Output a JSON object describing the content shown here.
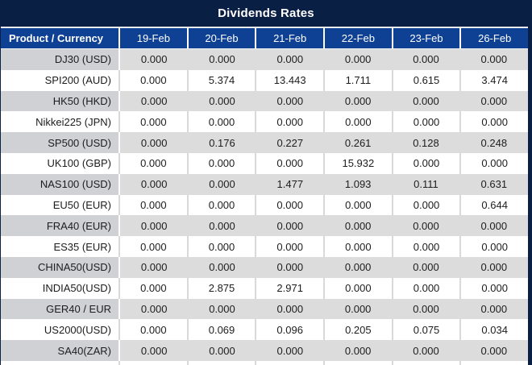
{
  "title": "Dividends Rates",
  "colors": {
    "title_bar_navy": "#0a1f44",
    "header_blue": "#0e4194",
    "highlight_red": "#ff0000",
    "row_gray": "#dcdcdc",
    "product_gray": "#cfd1d5",
    "text_black": "#1d1d1f"
  },
  "table": {
    "product_header": "Product / Currency",
    "date_headers": [
      "19-Feb",
      "20-Feb",
      "21-Feb",
      "22-Feb",
      "23-Feb",
      "26-Feb"
    ],
    "rows": [
      {
        "product": "DJ30 (USD)",
        "values": [
          "0.000",
          "0.000",
          "0.000",
          "0.000",
          "0.000",
          "0.000"
        ]
      },
      {
        "product": "SPI200 (AUD)",
        "values": [
          "0.000",
          "5.374",
          "13.443",
          "1.711",
          "0.615",
          "3.474"
        ]
      },
      {
        "product": "HK50 (HKD)",
        "values": [
          "0.000",
          "0.000",
          "0.000",
          "0.000",
          "0.000",
          "0.000"
        ]
      },
      {
        "product": "Nikkei225 (JPN)",
        "values": [
          "0.000",
          "0.000",
          "0.000",
          "0.000",
          "0.000",
          "0.000"
        ]
      },
      {
        "product": "SP500 (USD)",
        "values": [
          "0.000",
          "0.176",
          "0.227",
          "0.261",
          "0.128",
          "0.248"
        ]
      },
      {
        "product": "UK100 (GBP)",
        "values": [
          "0.000",
          "0.000",
          "0.000",
          "15.932",
          "0.000",
          "0.000"
        ]
      },
      {
        "product": "NAS100 (USD)",
        "values": [
          "0.000",
          "0.000",
          "1.477",
          "1.093",
          "0.111",
          "0.631"
        ]
      },
      {
        "product": "EU50 (EUR)",
        "values": [
          "0.000",
          "0.000",
          "0.000",
          "0.000",
          "0.000",
          "0.644"
        ]
      },
      {
        "product": "FRA40 (EUR)",
        "values": [
          "0.000",
          "0.000",
          "0.000",
          "0.000",
          "0.000",
          "0.000"
        ]
      },
      {
        "product": "ES35 (EUR)",
        "values": [
          "0.000",
          "0.000",
          "0.000",
          "0.000",
          "0.000",
          "0.000"
        ]
      },
      {
        "product": "CHINA50(USD)",
        "values": [
          "0.000",
          "0.000",
          "0.000",
          "0.000",
          "0.000",
          "0.000"
        ]
      },
      {
        "product": "INDIA50(USD)",
        "values": [
          "0.000",
          "2.875",
          "2.971",
          "0.000",
          "0.000",
          "0.000"
        ]
      },
      {
        "product": "GER40 / EUR",
        "values": [
          "0.000",
          "0.000",
          "0.000",
          "0.000",
          "0.000",
          "0.000"
        ]
      },
      {
        "product": "US2000(USD)",
        "values": [
          "0.000",
          "0.069",
          "0.096",
          "0.205",
          "0.075",
          "0.034"
        ]
      },
      {
        "product": "SA40(ZAR)",
        "values": [
          "0.000",
          "0.000",
          "0.000",
          "0.000",
          "0.000",
          "0.000"
        ]
      }
    ]
  }
}
